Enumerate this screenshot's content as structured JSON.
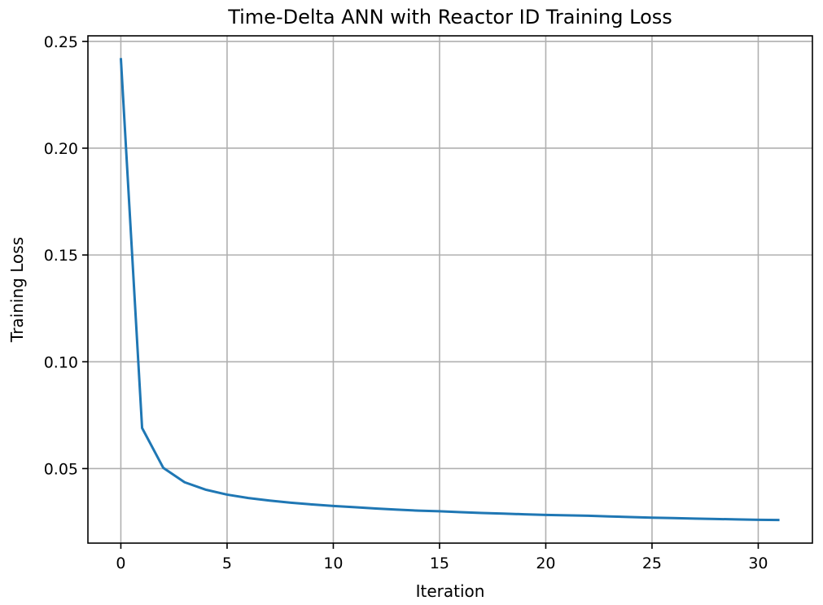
{
  "chart_data": {
    "type": "line",
    "title": "Time-Delta ANN with Reactor ID Training Loss",
    "xlabel": "Iteration",
    "ylabel": "Training Loss",
    "xlim": [
      -1.55,
      32.55
    ],
    "ylim": [
      0.0151,
      0.2526
    ],
    "xticks": [
      0,
      5,
      10,
      15,
      20,
      25,
      30
    ],
    "xtick_labels": [
      "0",
      "5",
      "10",
      "15",
      "20",
      "25",
      "30"
    ],
    "yticks": [
      0.05,
      0.1,
      0.15,
      0.2,
      0.25
    ],
    "ytick_labels": [
      "0.05",
      "0.10",
      "0.15",
      "0.20",
      "0.25"
    ],
    "grid": true,
    "series": [
      {
        "color": "#1f77b4",
        "x": [
          0,
          1,
          2,
          3,
          4,
          5,
          6,
          7,
          8,
          9,
          10,
          11,
          12,
          13,
          14,
          15,
          16,
          17,
          18,
          19,
          20,
          21,
          22,
          23,
          24,
          25,
          26,
          27,
          28,
          29,
          30,
          31
        ],
        "y": [
          0.2422,
          0.069,
          0.0503,
          0.0436,
          0.0401,
          0.0378,
          0.0362,
          0.035,
          0.034,
          0.0332,
          0.0325,
          0.0319,
          0.0313,
          0.0308,
          0.0303,
          0.03,
          0.0296,
          0.0292,
          0.0289,
          0.0286,
          0.0283,
          0.0281,
          0.0279,
          0.0276,
          0.0273,
          0.027,
          0.0268,
          0.0266,
          0.0264,
          0.0262,
          0.026,
          0.0259
        ]
      }
    ]
  }
}
